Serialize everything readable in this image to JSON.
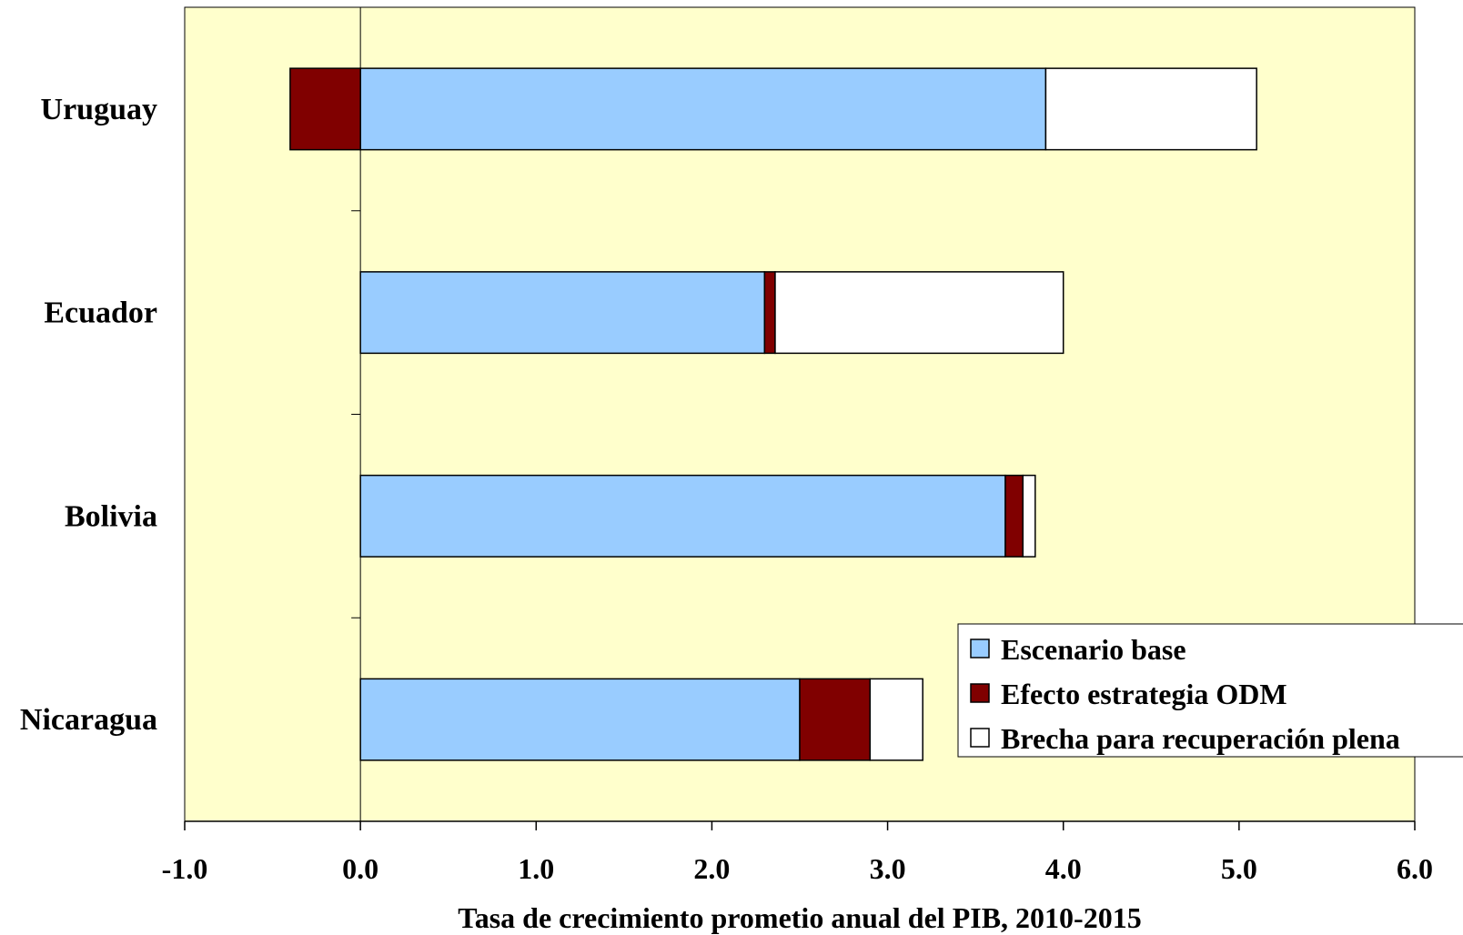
{
  "chart_data": {
    "type": "bar",
    "orientation": "horizontal",
    "stacked": true,
    "categories": [
      "Uruguay",
      "Ecuador",
      "Bolivia",
      "Nicaragua"
    ],
    "series": [
      {
        "name": "Escenario base",
        "color": "#99ccff",
        "values": [
          3.9,
          2.3,
          3.67,
          2.5
        ]
      },
      {
        "name": "Efecto estrategia ODM",
        "color": "#800000",
        "values": [
          -0.4,
          0.06,
          0.1,
          0.4
        ]
      },
      {
        "name": "Brecha para recuperación plena",
        "color": "#ffffff",
        "values": [
          1.2,
          1.64,
          0.07,
          0.3
        ]
      }
    ],
    "xlabel": "Tasa de crecimiento prometio anual del PIB, 2010-2015",
    "ylabel": "",
    "title": "",
    "xlim": [
      -1.0,
      6.0
    ],
    "xticks": [
      "-1.0",
      "0.0",
      "1.0",
      "2.0",
      "3.0",
      "4.0",
      "5.0",
      "6.0"
    ],
    "plot_background": "#ffffcc",
    "grid": false,
    "legend_position": "bottom-right"
  }
}
